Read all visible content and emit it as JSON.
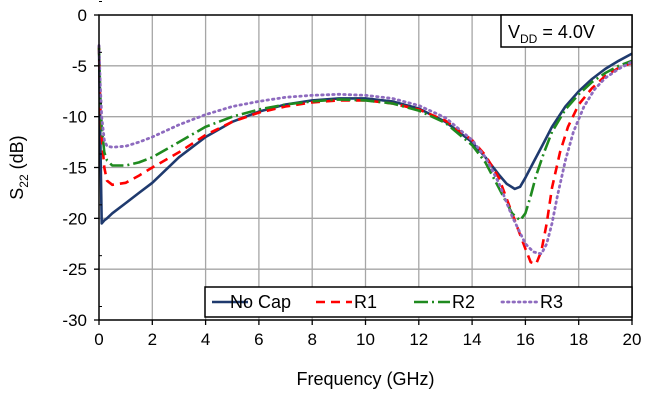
{
  "chart_data": {
    "type": "line",
    "xlabel": "Frequency (GHz)",
    "ylabel_main": "S",
    "ylabel_sub": "22",
    "ylabel_unit": " (dB)",
    "xlim": [
      0,
      20
    ],
    "ylim": [
      -30,
      0
    ],
    "xticks": [
      "0",
      "2",
      "4",
      "6",
      "8",
      "10",
      "12",
      "14",
      "16",
      "18",
      "20"
    ],
    "yticks": [
      "0",
      "-5",
      "-10",
      "-15",
      "-20",
      "-25",
      "-30"
    ],
    "grid": true,
    "legend_position": "bottom-right",
    "annotation": {
      "main": "V",
      "sub": "DD",
      "rest": " = 4.0V",
      "position": "top-right"
    },
    "series": [
      {
        "name": "No Cap",
        "color": "#1f3a6e",
        "style": "solid",
        "x": [
          0,
          0.05,
          0.1,
          0.2,
          0.3,
          0.5,
          1,
          1.5,
          2,
          3,
          4,
          5,
          6,
          7,
          8,
          9,
          10,
          11,
          12,
          13,
          14,
          14.5,
          15,
          15.3,
          15.6,
          15.8,
          16,
          16.3,
          16.7,
          17,
          17.5,
          18,
          18.5,
          19,
          19.5,
          20
        ],
        "y": [
          -3,
          -12,
          -20.5,
          -20.2,
          -20,
          -19.5,
          -18.5,
          -17.5,
          -16.5,
          -14,
          -12,
          -10.5,
          -9.5,
          -8.8,
          -8.4,
          -8.2,
          -8.2,
          -8.5,
          -9.2,
          -10.5,
          -12.5,
          -14,
          -15.7,
          -16.6,
          -17.1,
          -16.9,
          -16,
          -14.5,
          -12.5,
          -11,
          -9,
          -7.5,
          -6.3,
          -5.3,
          -4.5,
          -3.8
        ]
      },
      {
        "name": "R1",
        "color": "#ff0000",
        "style": "dashed",
        "x": [
          0,
          0.05,
          0.1,
          0.2,
          0.3,
          0.5,
          1,
          1.5,
          2,
          3,
          4,
          5,
          6,
          7,
          8,
          9,
          10,
          11,
          12,
          13,
          14,
          14.5,
          15,
          15.5,
          16,
          16.2,
          16.4,
          16.6,
          16.8,
          17,
          17.3,
          17.6,
          18,
          18.5,
          19,
          19.5,
          20
        ],
        "y": [
          -3,
          -9,
          -12,
          -15,
          -16.3,
          -16.7,
          -16.5,
          -15.8,
          -15,
          -13.5,
          -11.8,
          -10.5,
          -9.6,
          -9,
          -8.6,
          -8.4,
          -8.4,
          -8.7,
          -9.3,
          -10.4,
          -12.3,
          -13.8,
          -16,
          -19.5,
          -23,
          -24.3,
          -24.5,
          -23.2,
          -20.5,
          -17,
          -13.5,
          -11,
          -8.8,
          -7.2,
          -6,
          -5.2,
          -4.7
        ]
      },
      {
        "name": "R2",
        "color": "#1f8a1f",
        "style": "dashdot",
        "x": [
          0,
          0.05,
          0.1,
          0.2,
          0.3,
          0.5,
          1,
          1.5,
          2,
          3,
          4,
          5,
          6,
          7,
          8,
          9,
          10,
          11,
          12,
          13,
          14,
          14.5,
          15,
          15.5,
          15.8,
          16,
          16.2,
          16.4,
          16.7,
          17,
          17.5,
          18,
          18.5,
          19,
          19.5,
          20
        ],
        "y": [
          -3,
          -8,
          -11,
          -13.5,
          -14.3,
          -14.8,
          -14.8,
          -14.5,
          -14,
          -12.5,
          -11,
          -10,
          -9.3,
          -8.8,
          -8.5,
          -8.3,
          -8.4,
          -8.7,
          -9.4,
          -10.6,
          -12.8,
          -14.5,
          -17,
          -19.5,
          -20.2,
          -19.5,
          -17.8,
          -15.8,
          -13.5,
          -11.5,
          -9.3,
          -7.8,
          -6.6,
          -5.7,
          -5,
          -4.5
        ]
      },
      {
        "name": "R3",
        "color": "#8e6bbf",
        "style": "dotted",
        "x": [
          0,
          0.05,
          0.1,
          0.2,
          0.3,
          0.5,
          1,
          1.5,
          2,
          3,
          4,
          5,
          6,
          7,
          8,
          9,
          10,
          11,
          12,
          13,
          14,
          14.5,
          15,
          15.5,
          16,
          16.3,
          16.6,
          16.8,
          17,
          17.2,
          17.5,
          17.8,
          18.2,
          18.6,
          19,
          19.5,
          20
        ],
        "y": [
          -3,
          -7,
          -10,
          -12.3,
          -12.9,
          -13,
          -12.9,
          -12.5,
          -12,
          -10.8,
          -9.8,
          -9,
          -8.5,
          -8.1,
          -7.9,
          -7.8,
          -7.9,
          -8.2,
          -8.9,
          -10.1,
          -12.3,
          -14,
          -16.5,
          -19.8,
          -22.5,
          -23.3,
          -23.5,
          -22.5,
          -20.5,
          -17.8,
          -14.3,
          -11.5,
          -9,
          -7.3,
          -6.2,
          -5.3,
          -4.6
        ]
      }
    ]
  }
}
